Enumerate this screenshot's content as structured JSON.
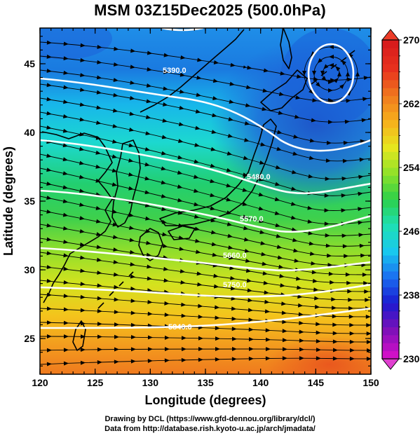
{
  "title": "MSM 03Z15Dec2025 (500.0hPa)",
  "x_axis": {
    "label": "Longitude (degrees)",
    "range": [
      120,
      150
    ],
    "ticks": [
      "120",
      "125",
      "130",
      "135",
      "140",
      "145",
      "150"
    ]
  },
  "y_axis": {
    "label": "Latitude  (degrees)",
    "range": [
      22.4,
      47.6
    ],
    "ticks": [
      "25",
      "30",
      "35",
      "40",
      "45"
    ]
  },
  "colorbar": {
    "ticks": [
      "270",
      "262",
      "254",
      "246",
      "238",
      "230"
    ],
    "min": 230,
    "max": 270,
    "colors": [
      "#d010c8",
      "#7a10b8",
      "#1a1ad0",
      "#1a6ef0",
      "#19c8ee",
      "#1ee0b4",
      "#2cd04a",
      "#8ee22a",
      "#e6e61e",
      "#f6b01c",
      "#f07a1e",
      "#e8321e",
      "#d81c1c"
    ]
  },
  "contours": [
    {
      "label": "5390.0"
    },
    {
      "label": "5480.0"
    },
    {
      "label": "5570.0"
    },
    {
      "label": "5660.0"
    },
    {
      "label": "5750.0"
    },
    {
      "label": "5840.0"
    }
  ],
  "credits": {
    "line1": "Drawing by DCL (https://www.gfd-dennou.org/library/dcl/)",
    "line2": "Data from http://database.rish.kyoto-u.ac.jp/arch/jmadata/"
  }
}
